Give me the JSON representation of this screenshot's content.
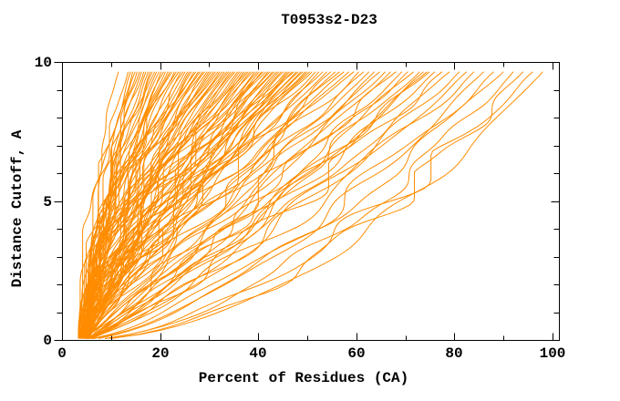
{
  "chart_data": {
    "type": "line",
    "title": "T0953s2-D23",
    "xlabel": "Percent of Residues (CA)",
    "ylabel": "Distance Cutoff, A",
    "xlim": [
      0,
      101.3
    ],
    "ylim": [
      0,
      10
    ],
    "x_major_ticks": [
      0,
      20,
      40,
      60,
      80,
      100
    ],
    "x_minor_ticks": [
      10,
      30,
      50,
      70,
      90
    ],
    "y_major_ticks": [
      0,
      5,
      10
    ],
    "y_minor_ticks": [
      1,
      2,
      3,
      4,
      6,
      7,
      8,
      9
    ],
    "grid": false,
    "legend": "none",
    "series_color": "#ff8c00",
    "axis_color": "#000000",
    "background_color": "#ffffff",
    "n_model_curves": 124,
    "curve_sampling": {
      "cutoff_min": 0.05,
      "cutoff_max": 9.65,
      "start_pct_min": 3.3,
      "start_pct_max": 5.5
    },
    "curve_shape": {
      "k_base": 1.78,
      "k_slope": -0.0145,
      "k_ref_end": 11,
      "k_jitter": 0.06,
      "wiggle_base": 0.5,
      "wiggle_scale": 45
    },
    "end_pct_per_model": [
      11.5,
      13.5,
      14,
      14.4,
      14.9,
      15.3,
      15.8,
      16.2,
      16.7,
      17.1,
      17.6,
      18,
      18.4,
      18.9,
      19.3,
      19.8,
      20.2,
      20.7,
      21.1,
      21.6,
      22,
      22.4,
      22.9,
      23.3,
      23.8,
      24.2,
      24.7,
      25.1,
      25.6,
      26,
      26.4,
      26.9,
      27.3,
      27.8,
      28.2,
      28.7,
      29.1,
      29.6,
      30,
      30.4,
      30.9,
      31.3,
      31.8,
      32.2,
      32.7,
      33.1,
      33.6,
      34,
      34.4,
      34.9,
      35.3,
      35.8,
      36.2,
      36.7,
      37.1,
      37.6,
      38,
      38.4,
      38.9,
      39.3,
      39.8,
      40.2,
      40.7,
      41.1,
      41.6,
      42,
      42.4,
      42.9,
      43.3,
      43.8,
      44.2,
      44.7,
      45.1,
      45.6,
      46,
      46.4,
      46.9,
      47.3,
      47.8,
      48.2,
      48.7,
      49.1,
      49.6,
      50,
      50.5,
      51,
      51.7,
      52.4,
      53.2,
      54,
      54.8,
      55.7,
      56.6,
      57.5,
      58.5,
      59.5,
      60.5,
      61.5,
      62.6,
      63.7,
      64.8,
      65.9,
      67,
      68.1,
      69.3,
      70.5,
      71.7,
      72.9,
      73.7,
      74.4,
      74.9,
      76,
      77.5,
      79,
      81,
      82.5,
      84,
      86,
      88,
      90,
      92,
      94,
      96,
      98
    ]
  }
}
